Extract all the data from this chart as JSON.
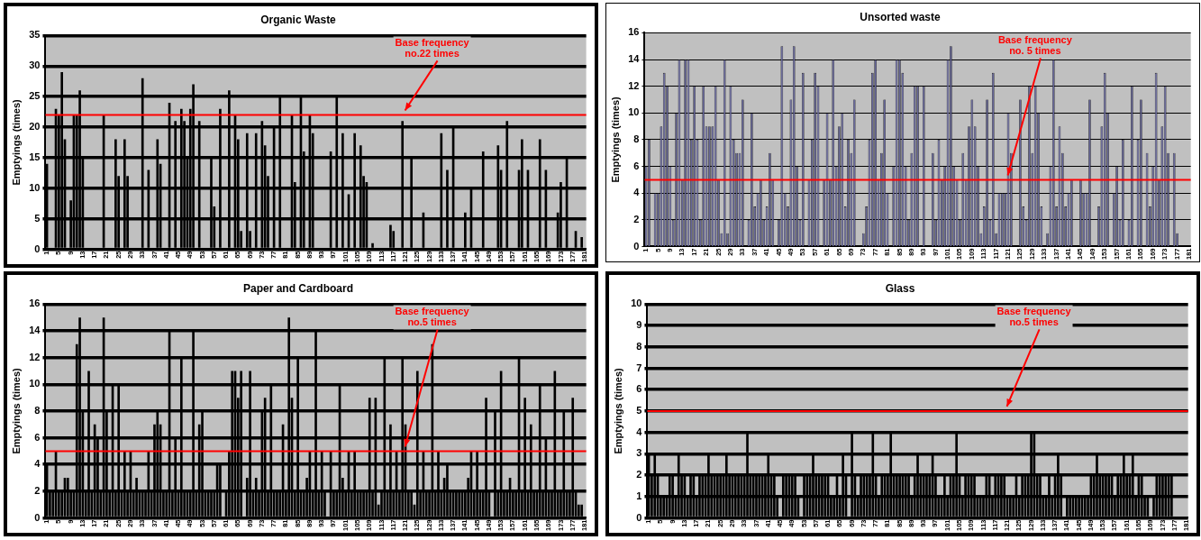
{
  "chart_data": [
    {
      "type": "bar",
      "title": "Organic Waste",
      "ylabel": "Emptyings (times)",
      "color": "#000000",
      "categories": [
        "1",
        null,
        null,
        null,
        "5",
        null,
        null,
        null,
        "9",
        null,
        null,
        null,
        "13",
        null,
        null,
        null,
        "17",
        null,
        null,
        null,
        "21",
        null,
        null,
        null,
        "25",
        null,
        null,
        null,
        "29",
        null,
        null,
        null,
        "33",
        null,
        null,
        null,
        "37",
        null,
        null,
        null,
        "41",
        null,
        null,
        null,
        "45",
        null,
        null,
        null,
        "49",
        null,
        null,
        null,
        "53",
        null,
        null,
        null,
        "57",
        null,
        null,
        null,
        "61",
        null,
        null,
        null,
        "65",
        null,
        null,
        null,
        "69",
        null,
        null,
        null,
        "73",
        null,
        null,
        null,
        "77",
        null,
        null,
        null,
        "81",
        null,
        null,
        null,
        "85",
        null,
        null,
        null,
        "89",
        null,
        null,
        null,
        "93",
        null,
        null,
        null,
        "97",
        null,
        null,
        null,
        "101",
        null,
        null,
        null,
        "105",
        null,
        null,
        null,
        "109",
        null,
        null,
        null,
        "113",
        null,
        null,
        null,
        "117",
        null,
        null,
        null,
        "121",
        null,
        null,
        null,
        "125",
        null,
        null,
        null,
        "129",
        null,
        null,
        null,
        "133",
        null,
        null,
        null,
        "137",
        null,
        null,
        null,
        "141",
        null,
        null,
        null,
        "145",
        null,
        null,
        null,
        "149",
        null,
        null,
        null,
        "153",
        null,
        null,
        null,
        "157",
        null,
        null,
        null,
        "161",
        null,
        null,
        null,
        "165",
        null,
        null,
        null,
        "169",
        null,
        null,
        null,
        "173",
        null,
        null,
        null,
        "177",
        null,
        null,
        null,
        "181"
      ],
      "values": [
        14,
        0,
        0,
        23,
        22,
        29,
        18,
        0,
        8,
        22,
        22,
        26,
        15,
        0,
        0,
        0,
        0,
        0,
        0,
        22,
        0,
        0,
        0,
        18,
        12,
        0,
        18,
        12,
        0,
        0,
        0,
        0,
        28,
        0,
        13,
        0,
        0,
        18,
        14,
        0,
        0,
        24,
        0,
        21,
        0,
        23,
        21,
        15,
        23,
        27,
        0,
        21,
        0,
        0,
        0,
        15,
        7,
        0,
        23,
        0,
        0,
        26,
        0,
        22,
        18,
        3,
        0,
        19,
        3,
        0,
        19,
        0,
        21,
        17,
        12,
        0,
        20,
        0,
        25,
        0,
        0,
        0,
        22,
        11,
        0,
        25,
        16,
        0,
        22,
        19,
        0,
        0,
        0,
        0,
        0,
        16,
        0,
        25,
        0,
        19,
        0,
        9,
        0,
        19,
        0,
        17,
        12,
        11,
        0,
        1,
        0,
        0,
        0,
        0,
        0,
        4,
        3,
        0,
        0,
        21,
        0,
        0,
        15,
        0,
        0,
        0,
        6,
        0,
        0,
        0,
        0,
        0,
        19,
        0,
        13,
        0,
        20,
        0,
        0,
        0,
        6,
        0,
        10,
        0,
        0,
        0,
        16,
        0,
        0,
        0,
        0,
        17,
        13,
        0,
        21,
        0,
        0,
        0,
        13,
        18,
        0,
        13,
        0,
        0,
        0,
        18,
        0,
        13,
        0,
        0,
        0,
        6,
        11,
        0,
        15,
        0,
        0,
        3,
        0,
        2,
        0
      ],
      "ylim": [
        0,
        35
      ],
      "yticks": [
        0,
        5,
        10,
        15,
        20,
        25,
        30,
        35
      ],
      "grid": "y",
      "ref_lines": [
        {
          "axis": "y",
          "value": 22,
          "label": "Base frequency no.22 times",
          "color": "#ff0000"
        }
      ]
    },
    {
      "type": "bar",
      "title": "Unsorted waste",
      "ylabel": "Emptyings (times)",
      "color": "#666699",
      "categories": [
        "1",
        null,
        null,
        null,
        "5",
        null,
        null,
        null,
        "9",
        null,
        null,
        null,
        "13",
        null,
        null,
        null,
        "17",
        null,
        null,
        null,
        "21",
        null,
        null,
        null,
        "25",
        null,
        null,
        null,
        "29",
        null,
        null,
        null,
        "33",
        null,
        null,
        null,
        "37",
        null,
        null,
        null,
        "41",
        null,
        null,
        null,
        "45",
        null,
        null,
        null,
        "49",
        null,
        null,
        null,
        "53",
        null,
        null,
        null,
        "57",
        null,
        null,
        null,
        "61",
        null,
        null,
        null,
        "65",
        null,
        null,
        null,
        "69",
        null,
        null,
        null,
        "73",
        null,
        null,
        null,
        "77",
        null,
        null,
        null,
        "81",
        null,
        null,
        null,
        "85",
        null,
        null,
        null,
        "89",
        null,
        null,
        null,
        "93",
        null,
        null,
        null,
        "97",
        null,
        null,
        null,
        "101",
        null,
        null,
        null,
        "105",
        null,
        null,
        null,
        "109",
        null,
        null,
        null,
        "113",
        null,
        null,
        null,
        "117",
        null,
        null,
        null,
        "121",
        null,
        null,
        null,
        "125",
        null,
        null,
        null,
        "129",
        null,
        null,
        null,
        "133",
        null,
        null,
        null,
        "137",
        null,
        null,
        null,
        "141",
        null,
        null,
        null,
        "145",
        null,
        null,
        null,
        "149",
        null,
        null,
        null,
        "153",
        null,
        null,
        null,
        "157",
        null,
        null,
        null,
        "161",
        null,
        null,
        null,
        "165",
        null,
        null,
        null,
        "169",
        null,
        null,
        null,
        "173",
        null,
        null,
        null,
        "177",
        null,
        null,
        null,
        "181"
      ],
      "values": [
        6,
        8,
        0,
        4,
        4,
        9,
        13,
        12,
        6,
        2,
        10,
        14,
        5,
        14,
        14,
        8,
        12,
        8,
        2,
        12,
        9,
        9,
        9,
        12,
        5,
        1,
        14,
        1,
        12,
        8,
        7,
        7,
        11,
        0,
        2,
        10,
        3,
        4,
        5,
        2,
        3,
        7,
        5,
        0,
        2,
        15,
        4,
        3,
        11,
        15,
        6,
        2,
        13,
        0,
        5,
        8,
        13,
        12,
        0,
        5,
        10,
        5,
        14,
        6,
        9,
        10,
        3,
        8,
        7,
        11,
        0,
        0,
        1,
        3,
        8,
        13,
        14,
        5,
        7,
        11,
        4,
        0,
        6,
        14,
        14,
        13,
        6,
        2,
        7,
        12,
        12,
        0,
        12,
        0,
        0,
        7,
        2,
        8,
        5,
        6,
        14,
        15,
        6,
        5,
        2,
        7,
        5,
        9,
        11,
        9,
        6,
        1,
        3,
        11,
        2,
        13,
        1,
        4,
        4,
        4,
        10,
        7,
        0,
        0,
        11,
        3,
        2,
        12,
        7,
        12,
        10,
        3,
        0,
        1,
        6,
        14,
        3,
        9,
        7,
        3,
        4,
        5,
        0,
        0,
        5,
        4,
        4,
        11,
        0,
        0,
        3,
        9,
        13,
        10,
        0,
        4,
        6,
        2,
        8,
        0,
        2,
        12,
        0,
        8,
        11,
        0,
        7,
        3,
        6,
        13,
        5,
        9,
        12,
        7,
        0,
        7,
        1,
        0,
        0,
        0,
        0
      ],
      "ylim": [
        0,
        16
      ],
      "yticks": [
        0,
        2,
        4,
        6,
        8,
        10,
        12,
        14,
        16
      ],
      "grid": "y",
      "ref_lines": [
        {
          "axis": "y",
          "value": 5,
          "label": "Base frequency no. 5 times",
          "color": "#ff0000"
        }
      ]
    },
    {
      "type": "bar",
      "title": "Paper and Cardboard",
      "ylabel": "Emptyings (times)",
      "color": "#000000",
      "categories": [
        "1",
        null,
        null,
        null,
        "5",
        null,
        null,
        null,
        "9",
        null,
        null,
        null,
        "13",
        null,
        null,
        null,
        "17",
        null,
        null,
        null,
        "21",
        null,
        null,
        null,
        "25",
        null,
        null,
        null,
        "29",
        null,
        null,
        null,
        "33",
        null,
        null,
        null,
        "37",
        null,
        null,
        null,
        "41",
        null,
        null,
        null,
        "45",
        null,
        null,
        null,
        "49",
        null,
        null,
        null,
        "53",
        null,
        null,
        null,
        "57",
        null,
        null,
        null,
        "61",
        null,
        null,
        null,
        "65",
        null,
        null,
        null,
        "69",
        null,
        null,
        null,
        "73",
        null,
        null,
        null,
        "77",
        null,
        null,
        null,
        "81",
        null,
        null,
        null,
        "85",
        null,
        null,
        null,
        "89",
        null,
        null,
        null,
        "93",
        null,
        null,
        null,
        "97",
        null,
        null,
        null,
        "101",
        null,
        null,
        null,
        "105",
        null,
        null,
        null,
        "109",
        null,
        null,
        null,
        "113",
        null,
        null,
        null,
        "117",
        null,
        null,
        null,
        "121",
        null,
        null,
        null,
        "125",
        null,
        null,
        null,
        "129",
        null,
        null,
        null,
        "133",
        null,
        null,
        null,
        "137",
        null,
        null,
        null,
        "141",
        null,
        null,
        null,
        "145",
        null,
        null,
        null,
        "149",
        null,
        null,
        null,
        "153",
        null,
        null,
        null,
        "157",
        null,
        null,
        null,
        "161",
        null,
        null,
        null,
        "165",
        null,
        null,
        null,
        "169",
        null,
        null,
        null,
        "173",
        null,
        null,
        null,
        "177",
        null,
        null,
        null,
        "181"
      ],
      "values": [
        4,
        2,
        2,
        5,
        2,
        2,
        3,
        3,
        2,
        2,
        13,
        15,
        8,
        2,
        11,
        2,
        7,
        6,
        2,
        15,
        8,
        2,
        10,
        2,
        10,
        2,
        5,
        2,
        5,
        2,
        3,
        2,
        2,
        2,
        5,
        2,
        7,
        8,
        7,
        2,
        2,
        14,
        2,
        6,
        2,
        12,
        2,
        2,
        2,
        14,
        2,
        7,
        8,
        2,
        2,
        2,
        2,
        4,
        4,
        0,
        2,
        5,
        11,
        11,
        9,
        11,
        0,
        3,
        11,
        2,
        3,
        2,
        8,
        9,
        2,
        10,
        2,
        2,
        2,
        7,
        2,
        15,
        9,
        2,
        12,
        2,
        2,
        3,
        5,
        2,
        14,
        2,
        5,
        2,
        0,
        5,
        2,
        2,
        10,
        3,
        2,
        5,
        2,
        5,
        2,
        2,
        2,
        2,
        9,
        2,
        9,
        1,
        2,
        12,
        2,
        7,
        2,
        5,
        2,
        12,
        7,
        2,
        2,
        1,
        11,
        2,
        5,
        2,
        2,
        13,
        2,
        5,
        2,
        3,
        4,
        2,
        2,
        2,
        2,
        2,
        2,
        3,
        5,
        2,
        5,
        2,
        2,
        9,
        2,
        0,
        8,
        2,
        11,
        2,
        2,
        3,
        2,
        2,
        12,
        2,
        9,
        2,
        7,
        2,
        2,
        10,
        2,
        6,
        2,
        2,
        11,
        2,
        2,
        8,
        2,
        2,
        9,
        2,
        1,
        1,
        0
      ],
      "ylim": [
        0,
        16
      ],
      "yticks": [
        0,
        2,
        4,
        6,
        8,
        10,
        12,
        14,
        16
      ],
      "grid": "y",
      "ref_lines": [
        {
          "axis": "y",
          "value": 5,
          "label": "Base frequency no.5 times",
          "color": "#ff0000"
        }
      ]
    },
    {
      "type": "bar",
      "title": "Glass",
      "ylabel": "Emptyings (times)",
      "color": "#000000",
      "categories": [
        "1",
        null,
        null,
        null,
        "5",
        null,
        null,
        null,
        "9",
        null,
        null,
        null,
        "13",
        null,
        null,
        null,
        "17",
        null,
        null,
        null,
        "21",
        null,
        null,
        null,
        "25",
        null,
        null,
        null,
        "29",
        null,
        null,
        null,
        "33",
        null,
        null,
        null,
        "37",
        null,
        null,
        null,
        "41",
        null,
        null,
        null,
        "45",
        null,
        null,
        null,
        "49",
        null,
        null,
        null,
        "53",
        null,
        null,
        null,
        "57",
        null,
        null,
        null,
        "61",
        null,
        null,
        null,
        "65",
        null,
        null,
        null,
        "69",
        null,
        null,
        null,
        "73",
        null,
        null,
        null,
        "77",
        null,
        null,
        null,
        "81",
        null,
        null,
        null,
        "85",
        null,
        null,
        null,
        "89",
        null,
        null,
        null,
        "93",
        null,
        null,
        null,
        "97",
        null,
        null,
        null,
        "101",
        null,
        null,
        null,
        "105",
        null,
        null,
        null,
        "109",
        null,
        null,
        null,
        "113",
        null,
        null,
        null,
        "117",
        null,
        null,
        null,
        "121",
        null,
        null,
        null,
        "125",
        null,
        null,
        null,
        "129",
        null,
        null,
        null,
        "133",
        null,
        null,
        null,
        "137",
        null,
        null,
        null,
        "141",
        null,
        null,
        null,
        "145",
        null,
        null,
        null,
        "149",
        null,
        null,
        null,
        "153",
        null,
        null,
        null,
        "157",
        null,
        null,
        null,
        "161",
        null,
        null,
        null,
        "165",
        null,
        null,
        null,
        "169",
        null,
        null,
        null,
        "173",
        null,
        null,
        null,
        "177",
        null,
        null,
        null,
        "181"
      ],
      "values": [
        3,
        2,
        3,
        2,
        1,
        1,
        1,
        2,
        2,
        1,
        3,
        2,
        2,
        1,
        2,
        2,
        1,
        2,
        2,
        2,
        3,
        2,
        2,
        2,
        2,
        2,
        3,
        2,
        2,
        2,
        2,
        2,
        2,
        4,
        2,
        2,
        2,
        2,
        2,
        2,
        3,
        2,
        2,
        1,
        0,
        2,
        2,
        2,
        2,
        2,
        1,
        0,
        2,
        2,
        2,
        3,
        2,
        2,
        2,
        2,
        2,
        1,
        1,
        2,
        1,
        3,
        2,
        0,
        4,
        2,
        1,
        2,
        2,
        2,
        2,
        4,
        2,
        1,
        2,
        2,
        2,
        4,
        2,
        2,
        2,
        2,
        2,
        2,
        1,
        2,
        3,
        2,
        2,
        2,
        2,
        3,
        2,
        1,
        1,
        2,
        1,
        2,
        2,
        4,
        2,
        1,
        2,
        2,
        2,
        2,
        1,
        1,
        1,
        2,
        2,
        1,
        2,
        2,
        2,
        2,
        1,
        1,
        1,
        2,
        1,
        2,
        2,
        2,
        4,
        4,
        2,
        2,
        1,
        1,
        2,
        1,
        2,
        3,
        2,
        0,
        1,
        1,
        1,
        1,
        1,
        1,
        1,
        1,
        2,
        2,
        3,
        2,
        2,
        2,
        2,
        2,
        1,
        2,
        2,
        3,
        2,
        2,
        3,
        1,
        2,
        2,
        1,
        1,
        0,
        1,
        2,
        2,
        2,
        2,
        2,
        2,
        0,
        0,
        0,
        0,
        0
      ],
      "ylim": [
        0,
        10
      ],
      "yticks": [
        0,
        1,
        2,
        3,
        4,
        5,
        6,
        7,
        8,
        9,
        10
      ],
      "grid": "y",
      "ref_lines": [
        {
          "axis": "y",
          "value": 5,
          "label": "Base frequency no.5 times",
          "color": "#ff0000"
        }
      ]
    }
  ]
}
